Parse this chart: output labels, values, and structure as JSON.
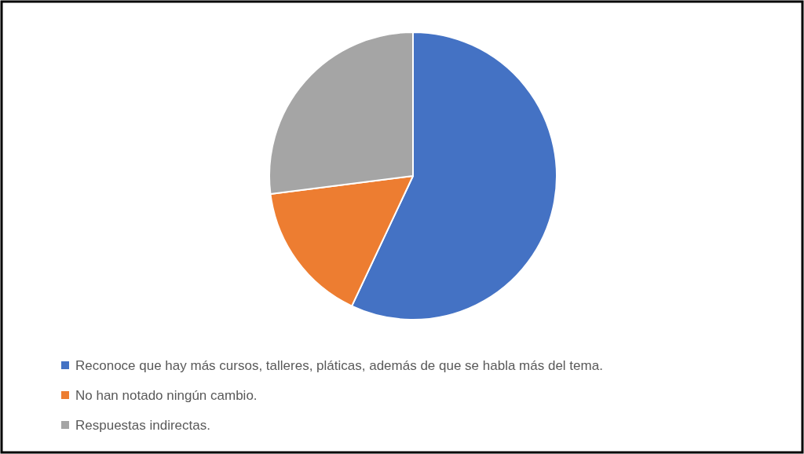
{
  "chart_data": {
    "type": "pie",
    "categories": [
      "Reconoce que hay más cursos, talleres, pláticas, además de que se habla más del tema.",
      "No han notado ningún cambio.",
      "Respuestas indirectas."
    ],
    "values": [
      57,
      16,
      27
    ],
    "colors": [
      "#4472c4",
      "#ed7d31",
      "#a5a5a5"
    ],
    "legend": "bottom"
  }
}
